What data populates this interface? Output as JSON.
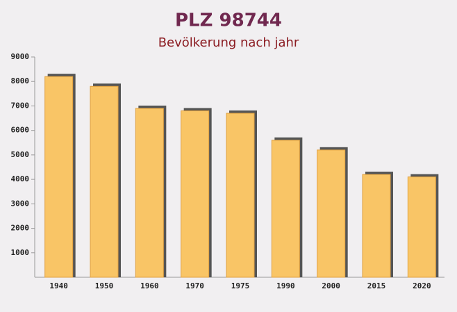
{
  "chart_data": {
    "type": "bar",
    "title": "PLZ 98744",
    "subtitle": "Bevölkerung nach jahr",
    "categories": [
      "1940",
      "1950",
      "1960",
      "1970",
      "1975",
      "1990",
      "2000",
      "2015",
      "2020"
    ],
    "values": [
      8200,
      7800,
      6900,
      6800,
      6700,
      5600,
      5200,
      4200,
      4100
    ],
    "color": "#f9c566",
    "ylim": [
      0,
      9000
    ],
    "yticks": [
      1000,
      2000,
      3000,
      4000,
      5000,
      6000,
      7000,
      8000,
      9000
    ]
  }
}
